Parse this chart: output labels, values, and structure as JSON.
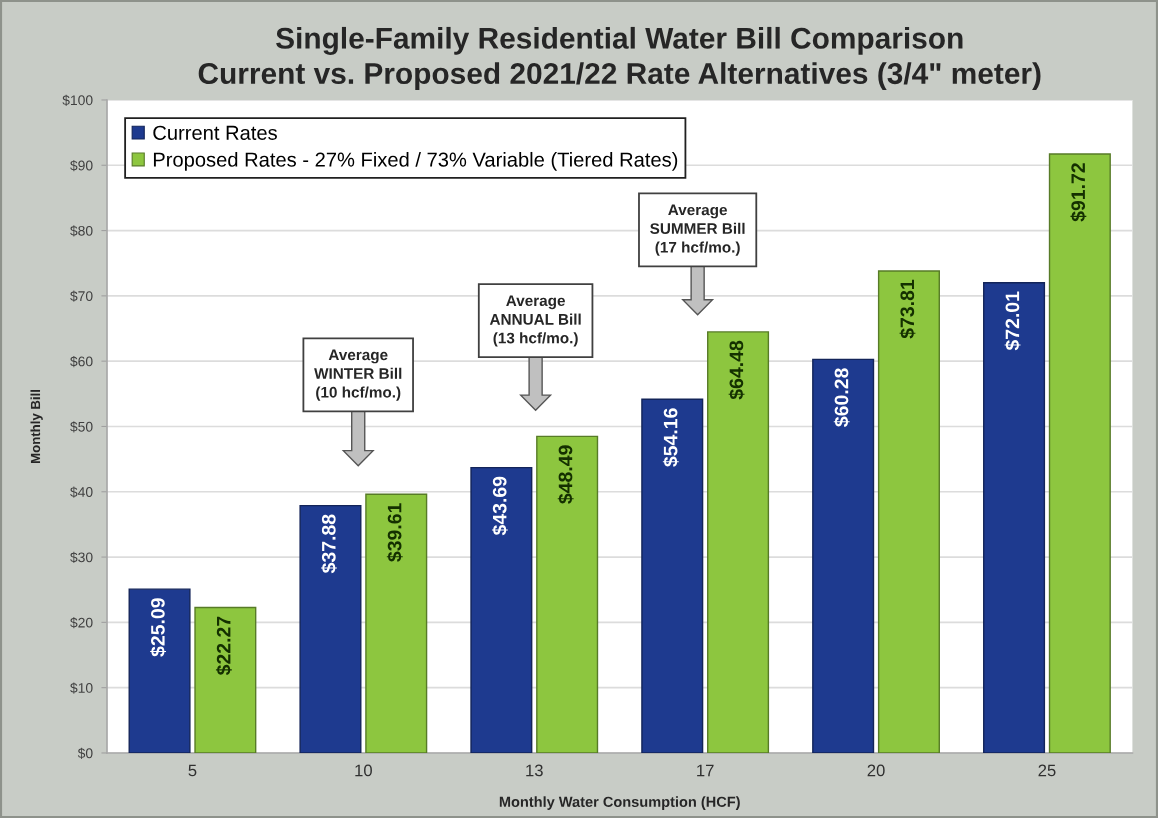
{
  "chart_data": {
    "type": "bar",
    "title": "Single-Family Residential Water Bill Comparison",
    "subtitle": "Current vs. Proposed 2021/22 Rate Alternatives (3/4\" meter)",
    "xlabel": "Monthly Water Consumption (HCF)",
    "ylabel": "Monthly Bill",
    "categories": [
      "5",
      "10",
      "13",
      "17",
      "20",
      "25"
    ],
    "series": [
      {
        "name": "Current Rates",
        "color": "#1e3a8f",
        "values": [
          25.09,
          37.88,
          43.69,
          54.16,
          60.28,
          72.01
        ],
        "value_labels": [
          "$25.09",
          "$37.88",
          "$43.69",
          "$54.16",
          "$60.28",
          "$72.01"
        ]
      },
      {
        "name": "Proposed Rates - 27% Fixed / 73% Variable (Tiered Rates)",
        "color": "#8dc63f",
        "values": [
          22.27,
          39.61,
          48.49,
          64.48,
          73.81,
          91.72
        ],
        "value_labels": [
          "$22.27",
          "$39.61",
          "$48.49",
          "$64.48",
          "$73.81",
          "$91.72"
        ]
      }
    ],
    "ylim": [
      0,
      100
    ],
    "yticks": [
      {
        "value": 0,
        "label": "$0"
      },
      {
        "value": 10,
        "label": "$10"
      },
      {
        "value": 20,
        "label": "$20"
      },
      {
        "value": 30,
        "label": "$30"
      },
      {
        "value": 40,
        "label": "$40"
      },
      {
        "value": 50,
        "label": "$50"
      },
      {
        "value": 60,
        "label": "$60"
      },
      {
        "value": 70,
        "label": "$70"
      },
      {
        "value": 80,
        "label": "$80"
      },
      {
        "value": 90,
        "label": "$90"
      },
      {
        "value": 100,
        "label": "$100"
      }
    ],
    "grid": "y",
    "legend": "top left",
    "annotations": [
      "Average\nWINTER Bill\n(10 hcf/mo.)",
      "Average\nANNUAL Bill\n(13 hcf/mo.)",
      "Average\nSUMMER Bill\n(17 hcf/mo.)"
    ]
  }
}
